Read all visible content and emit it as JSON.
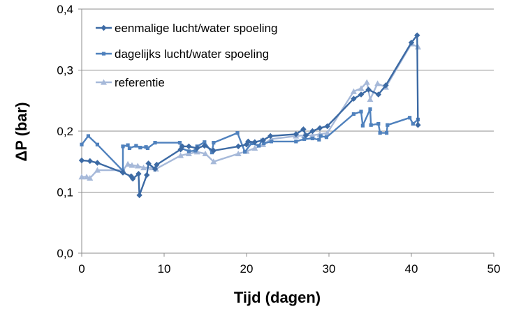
{
  "chart_data": {
    "type": "line",
    "xlabel": "Tijd (dagen)",
    "ylabel": "ΔP (bar)",
    "xlim": [
      0,
      50
    ],
    "ylim": [
      0,
      0.4
    ],
    "xticks": [
      0,
      10,
      20,
      30,
      40,
      50
    ],
    "xtick_labels": [
      "0",
      "10",
      "20",
      "30",
      "40",
      "50"
    ],
    "yticks": [
      0,
      0.1,
      0.2,
      0.3,
      0.4
    ],
    "ytick_labels": [
      "0,0",
      "0,1",
      "0,2",
      "0,3",
      "0,4"
    ],
    "grid": "horizontal",
    "legend_position": "top-left",
    "series": [
      {
        "name": "eenmalige lucht/water spoeling",
        "color": "#3c6aa4",
        "marker": "diamond",
        "points": [
          [
            0,
            0.152
          ],
          [
            1,
            0.151
          ],
          [
            1.9,
            0.148
          ],
          [
            5,
            0.132
          ],
          [
            6,
            0.126
          ],
          [
            6.2,
            0.122
          ],
          [
            6.9,
            0.13
          ],
          [
            7,
            0.095
          ],
          [
            7.9,
            0.128
          ],
          [
            8.1,
            0.147
          ],
          [
            8.9,
            0.138
          ],
          [
            9.1,
            0.145
          ],
          [
            12,
            0.17
          ],
          [
            12.2,
            0.175
          ],
          [
            13,
            0.175
          ],
          [
            14,
            0.172
          ],
          [
            14.9,
            0.176
          ],
          [
            16,
            0.168
          ],
          [
            19,
            0.175
          ],
          [
            20,
            0.178
          ],
          [
            20.2,
            0.183
          ],
          [
            21,
            0.182
          ],
          [
            22,
            0.185
          ],
          [
            22.9,
            0.192
          ],
          [
            26,
            0.195
          ],
          [
            26.9,
            0.203
          ],
          [
            27.2,
            0.193
          ],
          [
            28,
            0.2
          ],
          [
            28.9,
            0.205
          ],
          [
            29.8,
            0.208
          ],
          [
            33,
            0.253
          ],
          [
            33.9,
            0.26
          ],
          [
            34.8,
            0.268
          ],
          [
            36,
            0.26
          ],
          [
            36.9,
            0.275
          ],
          [
            40,
            0.345
          ],
          [
            40.7,
            0.357
          ],
          [
            40.8,
            0.21
          ]
        ]
      },
      {
        "name": "dagelijks lucht/water spoeling",
        "color": "#4f81bd",
        "marker": "square",
        "points": [
          [
            0,
            0.178
          ],
          [
            0.8,
            0.192
          ],
          [
            1.9,
            0.178
          ],
          [
            5,
            0.135
          ],
          [
            5,
            0.175
          ],
          [
            5.6,
            0.177
          ],
          [
            5.8,
            0.172
          ],
          [
            6.6,
            0.176
          ],
          [
            7.1,
            0.173
          ],
          [
            7.8,
            0.174
          ],
          [
            8,
            0.172
          ],
          [
            8.9,
            0.181
          ],
          [
            11.9,
            0.181
          ],
          [
            12.1,
            0.172
          ],
          [
            13,
            0.167
          ],
          [
            13.8,
            0.168
          ],
          [
            14,
            0.175
          ],
          [
            14.9,
            0.182
          ],
          [
            15.8,
            0.165
          ],
          [
            16,
            0.181
          ],
          [
            18.9,
            0.197
          ],
          [
            19.8,
            0.166
          ],
          [
            20.6,
            0.18
          ],
          [
            21.5,
            0.176
          ],
          [
            21.9,
            0.185
          ],
          [
            22.1,
            0.18
          ],
          [
            23,
            0.183
          ],
          [
            26,
            0.183
          ],
          [
            27,
            0.187
          ],
          [
            28,
            0.188
          ],
          [
            28.8,
            0.186
          ],
          [
            29,
            0.192
          ],
          [
            29.7,
            0.19
          ],
          [
            33,
            0.228
          ],
          [
            33.9,
            0.232
          ],
          [
            34.1,
            0.209
          ],
          [
            35,
            0.236
          ],
          [
            35.1,
            0.21
          ],
          [
            36,
            0.212
          ],
          [
            36.2,
            0.197
          ],
          [
            37,
            0.197
          ],
          [
            37.1,
            0.21
          ],
          [
            39.8,
            0.222
          ],
          [
            40.2,
            0.212
          ],
          [
            40.8,
            0.219
          ]
        ]
      },
      {
        "name": "referentie",
        "color": "#a6b9d9",
        "marker": "triangle",
        "points": [
          [
            0,
            0.125
          ],
          [
            0.6,
            0.125
          ],
          [
            1,
            0.123
          ],
          [
            1.9,
            0.136
          ],
          [
            5,
            0.136
          ],
          [
            5.6,
            0.146
          ],
          [
            6.1,
            0.144
          ],
          [
            6.8,
            0.143
          ],
          [
            7.5,
            0.14
          ],
          [
            8.5,
            0.14
          ],
          [
            9,
            0.138
          ],
          [
            12,
            0.16
          ],
          [
            13,
            0.163
          ],
          [
            14,
            0.166
          ],
          [
            15,
            0.163
          ],
          [
            16,
            0.15
          ],
          [
            19,
            0.163
          ],
          [
            20,
            0.167
          ],
          [
            21,
            0.172
          ],
          [
            22,
            0.178
          ],
          [
            23,
            0.187
          ],
          [
            26,
            0.192
          ],
          [
            27,
            0.193
          ],
          [
            28,
            0.193
          ],
          [
            28.9,
            0.195
          ],
          [
            29.8,
            0.197
          ],
          [
            33,
            0.265
          ],
          [
            33.9,
            0.27
          ],
          [
            34.6,
            0.28
          ],
          [
            35,
            0.252
          ],
          [
            35.9,
            0.278
          ],
          [
            36.9,
            0.272
          ],
          [
            40,
            0.343
          ],
          [
            40.8,
            0.338
          ]
        ]
      }
    ]
  }
}
